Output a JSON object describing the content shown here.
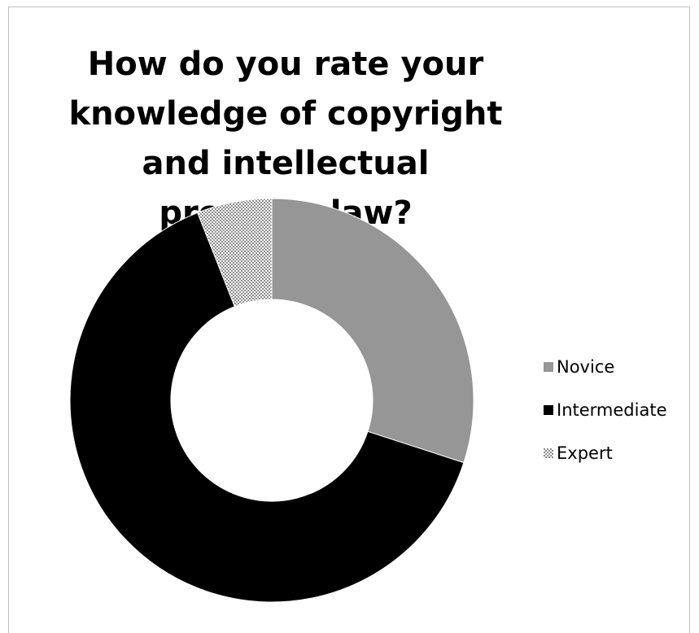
{
  "chart_data": {
    "type": "doughnut",
    "title": "How do you rate your knowledge of copyright and intellectual property law?",
    "categories": [
      "Novice",
      "Intermediate",
      "Expert"
    ],
    "values": [
      30,
      64,
      6
    ],
    "unit": "percent (estimated from slice angles)",
    "legend_placement": "right",
    "series_colors": [
      "#969696",
      "#000000",
      "checkered-grey"
    ]
  }
}
